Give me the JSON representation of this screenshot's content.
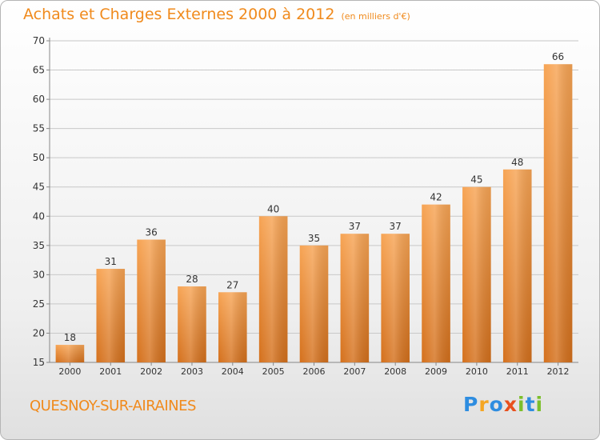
{
  "title": "Achats et Charges Externes 2000 à 2012",
  "subtitle": "(en milliers d'€)",
  "city": "QUESNOY-SUR-AIRAINES",
  "logo": {
    "letters": [
      "P",
      "r",
      "o",
      "x",
      "i",
      "t",
      "i"
    ],
    "colors": [
      "#2e8de0",
      "#f5a623",
      "#2e8de0",
      "#e8501e",
      "#7cbf2b",
      "#2e8de0",
      "#7cbf2b"
    ]
  },
  "colors": {
    "bar_top": "#f7a454",
    "bar_bottom": "#d4701c",
    "accent": "#f08a1c",
    "grid": "#c8c8c8",
    "axis_text": "#333333"
  },
  "chart_data": {
    "type": "bar",
    "categories": [
      "2000",
      "2001",
      "2002",
      "2003",
      "2004",
      "2005",
      "2006",
      "2007",
      "2008",
      "2009",
      "2010",
      "2011",
      "2012"
    ],
    "values": [
      18,
      31,
      36,
      28,
      27,
      40,
      35,
      37,
      37,
      42,
      45,
      48,
      66
    ],
    "data_labels": [
      "18",
      "31",
      "36",
      "28",
      "27",
      "40",
      "35",
      "37",
      "37",
      "42",
      "45",
      "48",
      "66"
    ],
    "y_ticks": [
      "15",
      "20",
      "25",
      "30",
      "35",
      "40",
      "45",
      "50",
      "55",
      "60",
      "65",
      "70"
    ],
    "ylim": [
      15,
      70
    ],
    "grid": true
  }
}
